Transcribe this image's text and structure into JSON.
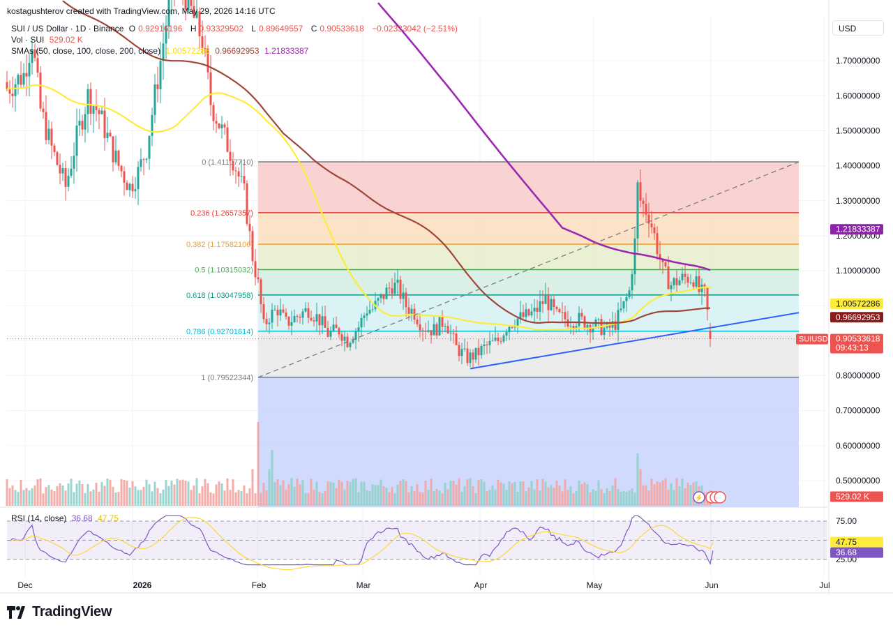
{
  "header": {
    "attribution": "kostagushterov created with TradingView.com, May 29, 2026 14:16 UTC"
  },
  "legend": {
    "symbol": "SUI / US Dollar · 1D · Binance",
    "ohlc": {
      "o_label": "O",
      "o": "0.92916196",
      "h_label": "H",
      "h": "0.93329502",
      "l_label": "L",
      "l": "0.89649557",
      "c_label": "C",
      "c": "0.90533618",
      "change": "−0.02333042 (−2.51%)"
    },
    "volume_label": "Vol · SUI",
    "volume_value": "529.02 K",
    "sma_label": "SMAs (50, close, 100, close, 200, close)",
    "sma50": "1.00572286",
    "sma100": "0.96692953",
    "sma200": "1.21833387"
  },
  "currency_button": "USD",
  "colors": {
    "up": "#26a69a",
    "down": "#ef5350",
    "sma50": "#ffeb3b",
    "sma100": "#a0453a",
    "sma200": "#9c27b0",
    "trendline": "#2962ff",
    "rsi": "#7e57c2",
    "rsi_ma": "#fdd835"
  },
  "icons": [
    "flag-usa-icon",
    "lightning-icon"
  ],
  "chart_data": {
    "type": "candlestick",
    "symbol": "SUIUSD",
    "price_axis": {
      "ticks": [
        "1.70000000",
        "1.60000000",
        "1.50000000",
        "1.40000000",
        "1.30000000",
        "1.20000000",
        "1.10000000",
        "0.80000000",
        "0.70000000",
        "0.60000000",
        "0.50000000"
      ],
      "range": [
        0.43,
        1.82
      ]
    },
    "time_axis": {
      "ticks": [
        "Dec",
        "2026",
        "Feb",
        "Mar",
        "Apr",
        "May",
        "Jun",
        "Jul"
      ]
    },
    "price_labels": [
      {
        "name": "SMA200",
        "value": "1.21833387"
      },
      {
        "name": "SMA50",
        "value": "1.00572286"
      },
      {
        "name": "SMA100",
        "value": "0.96692953"
      },
      {
        "name": "SUIUSD",
        "value": "0.90533618",
        "countdown": "09:43:13"
      },
      {
        "name": "Volume",
        "value": "529.02 K"
      }
    ],
    "fibonacci": [
      {
        "level": "0",
        "value": 1.4110771,
        "label": "0 (1.41107710)"
      },
      {
        "level": "0.236",
        "value": 1.2657357,
        "label": "0.236 (1.2657357)"
      },
      {
        "level": "0.382",
        "value": 1.17582106,
        "label": "0.382 (1.17582106)"
      },
      {
        "level": "0.5",
        "value": 1.10315032,
        "label": "0.5 (1.10315032)"
      },
      {
        "level": "0.618",
        "value": 1.03047958,
        "label": "0.618 (1.03047958)"
      },
      {
        "level": "0.786",
        "value": 0.92701614,
        "label": "0.786 (0.92701614)"
      },
      {
        "level": "1",
        "value": 0.79522344,
        "label": "1 (0.79522344)"
      }
    ],
    "rsi": {
      "label": "RSI (14, close)",
      "value": "36.68",
      "ma_value": "47.75",
      "levels": [
        "75.00",
        "25.00"
      ],
      "upper": 75,
      "lower": 25
    },
    "sma_values": {
      "sma50": 1.00572286,
      "sma100": 0.96692953,
      "sma200": 1.21833387
    },
    "last_price": 0.90533618
  }
}
